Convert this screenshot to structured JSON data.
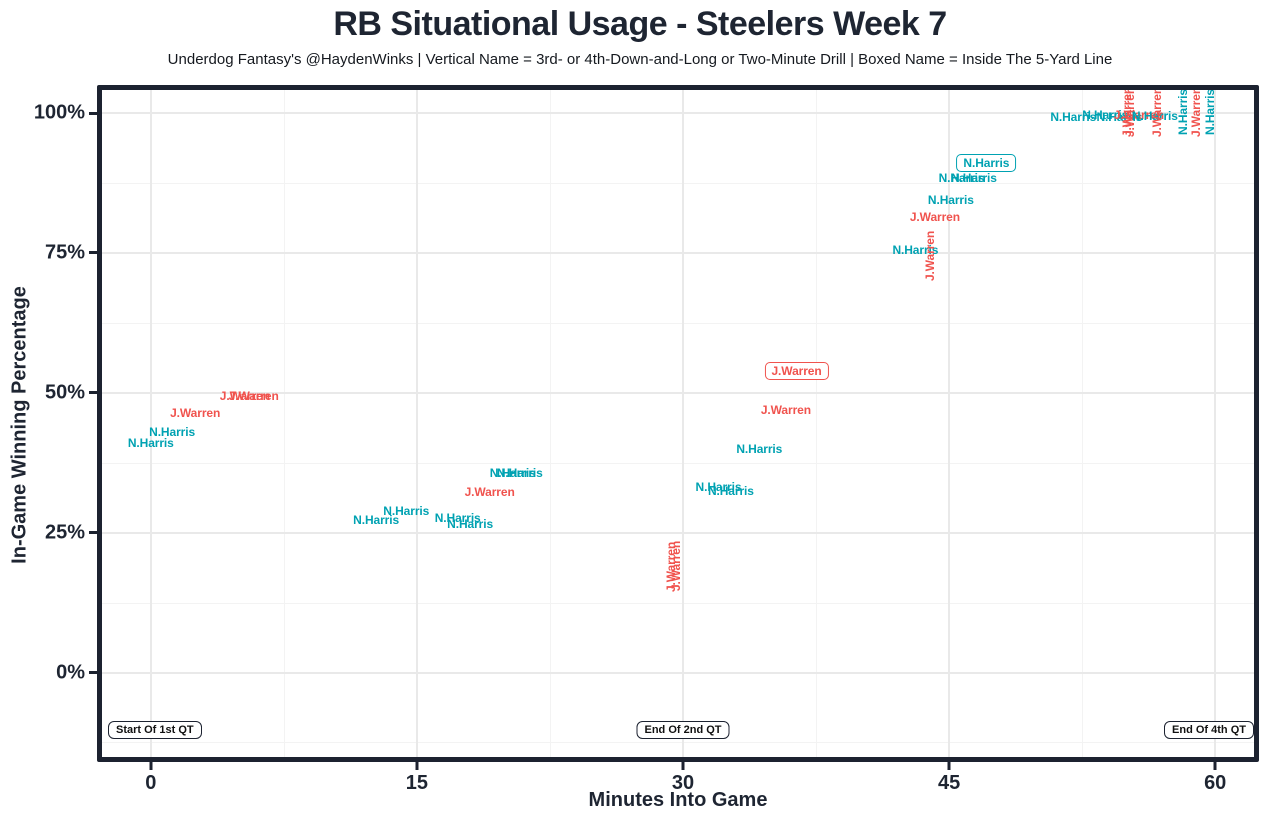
{
  "header": {
    "title": "RB Situational Usage - Steelers Week 7",
    "subtitle": "Underdog Fantasy's @HaydenWinks | Vertical Name = 3rd- or 4th-Down-and-Long or Two-Minute Drill | Boxed Name = Inside The 5-Yard Line"
  },
  "chart_data": {
    "type": "scatter",
    "title": "RB Situational Usage - Steelers Week 7",
    "subtitle": "Underdog Fantasy's @HaydenWinks | Vertical Name = 3rd- or 4th-Down-and-Long or Two-Minute Drill | Boxed Name = Inside The 5-Yard Line",
    "xlabel": "Minutes Into Game",
    "ylabel": "In-Game Winning Percentage",
    "xlim": [
      -2.75,
      62.2
    ],
    "ylim": [
      -15,
      104
    ],
    "grid": true,
    "legend": "none",
    "x_ticks": [
      {
        "value": 0,
        "label": "0"
      },
      {
        "value": 15,
        "label": "15"
      },
      {
        "value": 30,
        "label": "30"
      },
      {
        "value": 45,
        "label": "45"
      },
      {
        "value": 60,
        "label": "60"
      }
    ],
    "y_ticks": [
      {
        "value": 0,
        "label": "0%"
      },
      {
        "value": 25,
        "label": "25%"
      },
      {
        "value": 50,
        "label": "50%"
      },
      {
        "value": 75,
        "label": "75%"
      },
      {
        "value": 100,
        "label": "100%"
      }
    ],
    "x_minor_ticks": [
      7.5,
      22.5,
      37.5,
      52.5
    ],
    "y_minor_ticks": [
      -12.5,
      12.5,
      37.5,
      62.5,
      87.5
    ],
    "series_colors": {
      "N.Harris": "#00a2b2",
      "J.Warren": "#f0534e"
    },
    "points": [
      {
        "player": "N.Harris",
        "minutes": 0.0,
        "win_pct": 41.1,
        "orientation": "horizontal",
        "boxed": false
      },
      {
        "player": "N.Harris",
        "minutes": 1.2,
        "win_pct": 42.9,
        "orientation": "horizontal",
        "boxed": false
      },
      {
        "player": "J.Warren",
        "minutes": 2.5,
        "win_pct": 46.4,
        "orientation": "horizontal",
        "boxed": false
      },
      {
        "player": "J.Warren",
        "minutes": 5.3,
        "win_pct": 49.4,
        "orientation": "horizontal",
        "boxed": false
      },
      {
        "player": "J.Warren",
        "minutes": 5.8,
        "win_pct": 49.4,
        "orientation": "horizontal",
        "boxed": false
      },
      {
        "player": "N.Harris",
        "minutes": 12.7,
        "win_pct": 27.3,
        "orientation": "horizontal",
        "boxed": false
      },
      {
        "player": "N.Harris",
        "minutes": 14.4,
        "win_pct": 28.9,
        "orientation": "horizontal",
        "boxed": false
      },
      {
        "player": "N.Harris",
        "minutes": 17.3,
        "win_pct": 27.6,
        "orientation": "horizontal",
        "boxed": false
      },
      {
        "player": "N.Harris",
        "minutes": 18.0,
        "win_pct": 26.6,
        "orientation": "horizontal",
        "boxed": false
      },
      {
        "player": "J.Warren",
        "minutes": 19.1,
        "win_pct": 32.3,
        "orientation": "horizontal",
        "boxed": false
      },
      {
        "player": "N.Harris",
        "minutes": 20.4,
        "win_pct": 35.7,
        "orientation": "horizontal",
        "boxed": false
      },
      {
        "player": "N.Harris",
        "minutes": 20.8,
        "win_pct": 35.7,
        "orientation": "horizontal",
        "boxed": false
      },
      {
        "player": "J.Warren",
        "minutes": 29.3,
        "win_pct": 18.8,
        "orientation": "vertical",
        "boxed": false
      },
      {
        "player": "J.Warren",
        "minutes": 29.6,
        "win_pct": 19.1,
        "orientation": "vertical",
        "boxed": false
      },
      {
        "player": "N.Harris",
        "minutes": 32.0,
        "win_pct": 33.2,
        "orientation": "horizontal",
        "boxed": false
      },
      {
        "player": "N.Harris",
        "minutes": 32.7,
        "win_pct": 32.4,
        "orientation": "horizontal",
        "boxed": false
      },
      {
        "player": "N.Harris",
        "minutes": 34.3,
        "win_pct": 40.0,
        "orientation": "horizontal",
        "boxed": false
      },
      {
        "player": "J.Warren",
        "minutes": 35.8,
        "win_pct": 47.0,
        "orientation": "horizontal",
        "boxed": false
      },
      {
        "player": "J.Warren",
        "minutes": 36.4,
        "win_pct": 53.8,
        "orientation": "horizontal",
        "boxed": true
      },
      {
        "player": "N.Harris",
        "minutes": 43.1,
        "win_pct": 75.6,
        "orientation": "horizontal",
        "boxed": false
      },
      {
        "player": "J.Warren",
        "minutes": 43.9,
        "win_pct": 74.5,
        "orientation": "vertical",
        "boxed": false
      },
      {
        "player": "J.Warren",
        "minutes": 44.2,
        "win_pct": 81.5,
        "orientation": "horizontal",
        "boxed": false
      },
      {
        "player": "N.Harris",
        "minutes": 45.1,
        "win_pct": 84.5,
        "orientation": "horizontal",
        "boxed": false
      },
      {
        "player": "N.Harris",
        "minutes": 45.7,
        "win_pct": 88.3,
        "orientation": "horizontal",
        "boxed": false
      },
      {
        "player": "N.Harris",
        "minutes": 46.4,
        "win_pct": 88.3,
        "orientation": "horizontal",
        "boxed": false
      },
      {
        "player": "N.Harris",
        "minutes": 47.1,
        "win_pct": 91.0,
        "orientation": "horizontal",
        "boxed": true
      },
      {
        "player": "N.Harris",
        "minutes": 52.0,
        "win_pct": 99.2,
        "orientation": "horizontal",
        "boxed": false
      },
      {
        "player": "N.Harris",
        "minutes": 53.8,
        "win_pct": 99.6,
        "orientation": "horizontal",
        "boxed": false
      },
      {
        "player": "N.Harris",
        "minutes": 54.6,
        "win_pct": 99.3,
        "orientation": "horizontal",
        "boxed": false
      },
      {
        "player": "J.Warren",
        "minutes": 55.0,
        "win_pct": 100.2,
        "orientation": "vertical",
        "boxed": false
      },
      {
        "player": "J.Warren",
        "minutes": 55.2,
        "win_pct": 100.2,
        "orientation": "vertical",
        "boxed": false
      },
      {
        "player": "J.Warren",
        "minutes": 55.7,
        "win_pct": 99.6,
        "orientation": "horizontal",
        "boxed": false
      },
      {
        "player": "N.Harris",
        "minutes": 56.6,
        "win_pct": 99.4,
        "orientation": "horizontal",
        "boxed": false
      },
      {
        "player": "J.Warren",
        "minutes": 56.7,
        "win_pct": 100.2,
        "orientation": "vertical",
        "boxed": false
      },
      {
        "player": "N.Harris",
        "minutes": 58.2,
        "win_pct": 100.2,
        "orientation": "vertical",
        "boxed": false
      },
      {
        "player": "J.Warren",
        "minutes": 58.9,
        "win_pct": 100.2,
        "orientation": "vertical",
        "boxed": false
      },
      {
        "player": "N.Harris",
        "minutes": 59.7,
        "win_pct": 100.2,
        "orientation": "vertical",
        "boxed": false
      }
    ],
    "annotations": [
      {
        "label": "Start Of 1st QT",
        "position": "bottom-left",
        "y_pct": -10.3
      },
      {
        "label": "End Of 2nd QT",
        "position": "bottom-center",
        "minutes": 30,
        "y_pct": -10.3
      },
      {
        "label": "End Of 4th QT",
        "position": "bottom-right",
        "y_pct": -10.3
      }
    ]
  }
}
